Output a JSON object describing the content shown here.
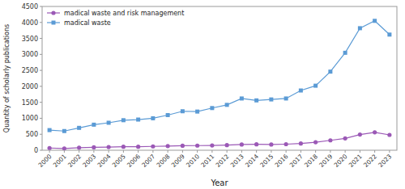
{
  "chart_data": {
    "type": "line",
    "x": [
      2000,
      2001,
      2002,
      2003,
      2004,
      2005,
      2006,
      2007,
      2008,
      2009,
      2010,
      2011,
      2012,
      2013,
      2014,
      2015,
      2016,
      2017,
      2018,
      2019,
      2020,
      2021,
      2022,
      2023
    ],
    "xlim": [
      1999.5,
      2023.5
    ],
    "xticks": [
      2000,
      2001,
      2002,
      2003,
      2004,
      2005,
      2006,
      2007,
      2008,
      2009,
      2010,
      2011,
      2012,
      2013,
      2014,
      2015,
      2016,
      2017,
      2018,
      2019,
      2020,
      2021,
      2022,
      2023
    ],
    "xlabel": "Year",
    "ylabel": "Quantity of scholarly publications",
    "ylim": [
      0,
      4500
    ],
    "yticks": [
      0,
      500,
      1000,
      1500,
      2000,
      2500,
      3000,
      3500,
      4000,
      4500
    ],
    "legend": "upper left",
    "series": [
      {
        "name": "madical waste and risk management",
        "color": "#9B59B6",
        "marker": "circle",
        "values": [
          70,
          55,
          80,
          90,
          100,
          110,
          110,
          120,
          130,
          140,
          145,
          150,
          160,
          180,
          185,
          180,
          190,
          210,
          250,
          310,
          370,
          490,
          560,
          480
        ]
      },
      {
        "name": "madical waste",
        "color": "#5B9BD5",
        "marker": "square",
        "values": [
          630,
          600,
          700,
          800,
          860,
          940,
          960,
          1000,
          1100,
          1220,
          1210,
          1320,
          1420,
          1620,
          1560,
          1590,
          1620,
          1870,
          2020,
          2460,
          3050,
          3820,
          4050,
          3620
        ]
      }
    ]
  }
}
